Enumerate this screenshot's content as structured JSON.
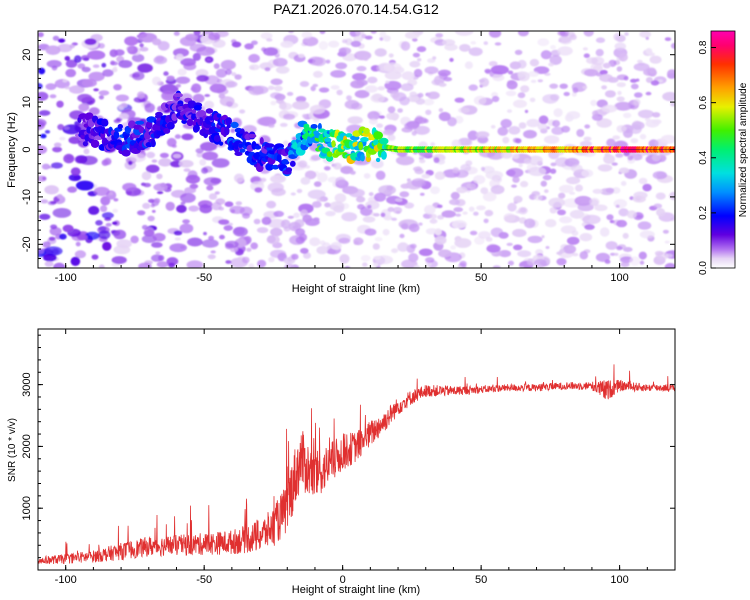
{
  "title": "PAZ1.2026.070.14.54.G12",
  "chart_data": [
    {
      "type": "heatmap",
      "title": "PAZ1.2026.070.14.54.G12",
      "xlabel": "Height of straight line (km)",
      "ylabel": "Frequency (Hz)",
      "xlim": [
        -110,
        120
      ],
      "ylim": [
        -25,
        25
      ],
      "x_ticks": [
        -100,
        -50,
        0,
        50,
        100
      ],
      "y_ticks": [
        -20,
        -10,
        0,
        10,
        20
      ],
      "x_tick_labels": [
        "-100",
        "-50",
        "0",
        "50",
        "100"
      ],
      "y_tick_labels": [
        "-20",
        "-10",
        "0",
        "10",
        "20"
      ],
      "ridge": {
        "x": [
          -90,
          -80,
          -70,
          -60,
          -50,
          -40,
          -30,
          -20,
          -15,
          -10,
          -5,
          0,
          5,
          10,
          20,
          40,
          60,
          80,
          100,
          120
        ],
        "freq": [
          4,
          2,
          3,
          9,
          6,
          3,
          -1,
          -2,
          2.5,
          2.5,
          1,
          0.5,
          1,
          1,
          0,
          0,
          0,
          0,
          0,
          0
        ],
        "amplitude": [
          0.12,
          0.18,
          0.16,
          0.14,
          0.14,
          0.18,
          0.16,
          0.18,
          0.3,
          0.35,
          0.4,
          0.45,
          0.45,
          0.45,
          0.5,
          0.55,
          0.6,
          0.65,
          0.75,
          0.7
        ]
      },
      "colorbar": {
        "label": "Normalized spectral amplitude",
        "range": [
          0.0,
          0.86
        ],
        "ticks": [
          0.0,
          0.2,
          0.4,
          0.6,
          0.8
        ],
        "tick_labels": [
          "0.0",
          "0.2",
          "0.4",
          "0.6",
          "0.8"
        ]
      }
    },
    {
      "type": "line",
      "xlabel": "Height of straight line (km)",
      "ylabel": "SNR (10 * v/v)",
      "xlim": [
        -110,
        120
      ],
      "ylim": [
        0,
        3900
      ],
      "x_ticks": [
        -100,
        -50,
        0,
        50,
        100
      ],
      "y_ticks": [
        1000,
        2000,
        3000
      ],
      "x_tick_labels": [
        "-100",
        "-50",
        "0",
        "50",
        "100"
      ],
      "y_tick_labels": [
        "1000",
        "2000",
        "3000"
      ],
      "series": [
        {
          "name": "SNR",
          "color": "#e03030",
          "x": [
            -110,
            -100,
            -90,
            -80,
            -70,
            -60,
            -50,
            -40,
            -30,
            -25,
            -20,
            -18,
            -15,
            -12,
            -10,
            -5,
            0,
            5,
            10,
            15,
            20,
            25,
            30,
            40,
            50,
            60,
            70,
            80,
            90,
            95,
            100,
            110,
            120
          ],
          "y": [
            150,
            180,
            220,
            300,
            380,
            400,
            420,
            450,
            550,
            700,
            1000,
            1400,
            1800,
            1600,
            1500,
            1700,
            1900,
            2000,
            2200,
            2400,
            2650,
            2800,
            2900,
            2900,
            2920,
            2950,
            2950,
            2980,
            2980,
            2900,
            2980,
            2950,
            2950
          ],
          "noise": [
            60,
            80,
            100,
            140,
            160,
            170,
            180,
            200,
            260,
            320,
            420,
            500,
            500,
            450,
            400,
            350,
            300,
            250,
            220,
            180,
            150,
            120,
            100,
            80,
            60,
            60,
            60,
            60,
            70,
            180,
            90,
            60,
            60
          ]
        }
      ]
    }
  ]
}
